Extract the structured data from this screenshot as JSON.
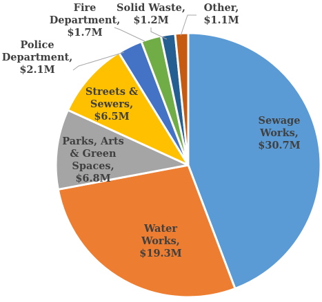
{
  "chart_data": {
    "type": "pie",
    "title": "",
    "currency_unit": "$M",
    "slices": [
      {
        "lines": [
          "Sewage",
          "Works,",
          "$30.7M"
        ],
        "value": 30.7,
        "color": "#5b9bd5",
        "label_color": "#404040"
      },
      {
        "lines": [
          "Water",
          "Works,",
          "$19.3M"
        ],
        "value": 19.3,
        "color": "#ed7d31",
        "label_color": "#404040"
      },
      {
        "lines": [
          "Parks, Arts",
          "& Green",
          "Spaces,",
          "$6.8M"
        ],
        "value": 6.8,
        "color": "#a5a5a5",
        "label_color": "#404040"
      },
      {
        "lines": [
          "Streets &",
          "Sewers,",
          "$6.5M"
        ],
        "value": 6.5,
        "color": "#ffc000",
        "label_color": "#404040"
      },
      {
        "lines": [
          "Police",
          "Department,",
          "$2.1M"
        ],
        "value": 2.1,
        "color": "#4472c4",
        "label_color": "#404040"
      },
      {
        "lines": [
          "Fire",
          "Department,",
          "$1.7M"
        ],
        "value": 1.7,
        "color": "#70ad47",
        "label_color": "#404040"
      },
      {
        "lines": [
          "Solid Waste,",
          "$1.2M"
        ],
        "value": 1.2,
        "color": "#255e91",
        "label_color": "#404040"
      },
      {
        "lines": [
          "Other,",
          "$1.1M"
        ],
        "value": 1.1,
        "color": "#c55a11",
        "label_color": "#404040"
      }
    ],
    "start_angle_deg": 0,
    "direction": "clockwise",
    "legend": "none"
  }
}
